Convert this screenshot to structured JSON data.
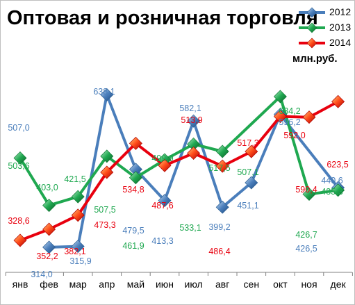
{
  "colors": {
    "s2012": "#4a7ebb",
    "s2013": "#1fa850",
    "s2014": "#e8000e",
    "axis": "#808080"
  },
  "chart_data": {
    "type": "line",
    "title": "Оптовая и розничная торговля",
    "unit": "млн.руб.",
    "legend_position": "top-right",
    "grid": false,
    "categories": [
      "янв",
      "фев",
      "мар",
      "апр",
      "май",
      "июн",
      "июл",
      "авг",
      "сен",
      "окт",
      "ноя",
      "дек"
    ],
    "ylim": [
      300,
      650
    ],
    "series": [
      {
        "name": "2012",
        "color": "#4a7ebb",
        "values": [
          null,
          314.0,
          315.9,
          638.1,
          479.5,
          413.3,
          582.1,
          399.2,
          451.1,
          596.2,
          null,
          440.6
        ],
        "labels": [
          null,
          "314,0",
          "315,9",
          "638,1",
          "479,5",
          "413,3",
          "582,1",
          "399,2",
          "451,1",
          "596,2",
          "426,5",
          "440,6"
        ]
      },
      {
        "name": "2013",
        "color": "#1fa850",
        "values": [
          503.6,
          403.0,
          421.5,
          507.5,
          461.9,
          499.9,
          533.1,
          517.5,
          null,
          634.2,
          426.7,
          435.3
        ],
        "labels": [
          "503,6",
          "403,0",
          "421,5",
          "507,5",
          "461,9",
          "499,9",
          "533,1",
          "517,5",
          null,
          "634,2",
          "426,7",
          "435,3"
        ]
      },
      {
        "name": "2014",
        "color": "#e8000e",
        "values": [
          328.6,
          352.2,
          382.1,
          473.3,
          534.8,
          487.6,
          513.9,
          486.4,
          517.3,
          592.0,
          590.4,
          623.5
        ],
        "labels": [
          "328,6",
          "352,2",
          "382,1",
          "473,3",
          "534,8",
          "487,6",
          "513,9",
          "486,4",
          "517,3",
          "592,0",
          "590,4",
          "623,5"
        ]
      }
    ],
    "extra_labels": [
      {
        "series": "2012",
        "text": "507,0"
      },
      {
        "series": "2013",
        "text": "507,1"
      }
    ]
  }
}
